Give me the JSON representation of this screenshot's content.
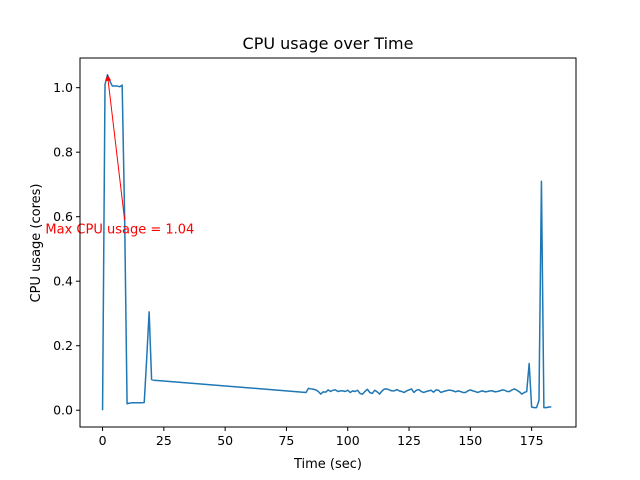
{
  "chart_data": {
    "type": "line",
    "title": "CPU usage over Time",
    "xlabel": "Time (sec)",
    "ylabel": "CPU usage (cores)",
    "xlim": [
      -9.2,
      193.1
    ],
    "ylim": [
      -0.052,
      1.092
    ],
    "xticks": [
      0,
      25,
      50,
      75,
      100,
      125,
      150,
      175
    ],
    "yticks": [
      0.0,
      0.2,
      0.4,
      0.6,
      0.8,
      1.0
    ],
    "xtick_labels": [
      "0",
      "25",
      "50",
      "75",
      "100",
      "125",
      "150",
      "175"
    ],
    "ytick_labels": [
      "0.0",
      "0.2",
      "0.4",
      "0.6",
      "0.8",
      "1.0"
    ],
    "grid": false,
    "series": [
      {
        "color": "#1f77b4",
        "x": [
          0,
          1,
          2,
          3,
          4,
          5,
          6,
          7,
          8,
          9,
          10,
          11,
          12,
          13,
          14,
          15,
          16,
          17,
          18,
          19,
          20,
          21,
          83,
          84,
          85,
          86,
          87,
          88,
          89,
          90,
          91,
          92,
          93,
          94,
          95,
          96,
          97,
          98,
          99,
          100,
          101,
          102,
          103,
          104,
          105,
          106,
          107,
          108,
          109,
          110,
          111,
          112,
          113,
          114,
          115,
          116,
          117,
          118,
          119,
          120,
          121,
          122,
          123,
          124,
          125,
          126,
          127,
          128,
          129,
          130,
          131,
          132,
          133,
          134,
          135,
          136,
          137,
          138,
          139,
          140,
          141,
          142,
          143,
          144,
          145,
          146,
          147,
          148,
          149,
          150,
          151,
          152,
          153,
          154,
          155,
          156,
          157,
          158,
          159,
          160,
          161,
          162,
          163,
          164,
          165,
          166,
          167,
          168,
          169,
          170,
          171,
          172,
          173,
          174,
          175,
          176,
          177,
          178,
          179,
          180,
          181,
          182,
          183
        ],
        "y": [
          0.0,
          1.01,
          1.04,
          1.02,
          1.005,
          1.005,
          1.005,
          1.003,
          1.008,
          0.6,
          0.02,
          0.022,
          0.023,
          0.023,
          0.023,
          0.023,
          0.023,
          0.024,
          0.16,
          0.305,
          0.095,
          0.093,
          0.055,
          0.068,
          0.066,
          0.065,
          0.063,
          0.058,
          0.05,
          0.057,
          0.056,
          0.063,
          0.058,
          0.062,
          0.063,
          0.058,
          0.06,
          0.06,
          0.058,
          0.062,
          0.055,
          0.06,
          0.058,
          0.062,
          0.052,
          0.05,
          0.058,
          0.065,
          0.055,
          0.052,
          0.062,
          0.057,
          0.05,
          0.06,
          0.066,
          0.066,
          0.063,
          0.06,
          0.06,
          0.064,
          0.06,
          0.058,
          0.055,
          0.06,
          0.063,
          0.066,
          0.055,
          0.062,
          0.064,
          0.058,
          0.055,
          0.058,
          0.06,
          0.062,
          0.056,
          0.063,
          0.062,
          0.055,
          0.058,
          0.06,
          0.062,
          0.062,
          0.06,
          0.057,
          0.06,
          0.058,
          0.055,
          0.055,
          0.06,
          0.063,
          0.06,
          0.058,
          0.055,
          0.058,
          0.06,
          0.057,
          0.058,
          0.06,
          0.06,
          0.057,
          0.058,
          0.06,
          0.063,
          0.062,
          0.058,
          0.058,
          0.063,
          0.066,
          0.062,
          0.057,
          0.05,
          0.055,
          0.058,
          0.145,
          0.01,
          0.008,
          0.008,
          0.03,
          0.71,
          0.008,
          0.008,
          0.01,
          0.01
        ]
      }
    ],
    "annotations": [
      {
        "text": "Max CPU usage = 1.04",
        "color": "#ff0000",
        "point": [
          2,
          1.04
        ],
        "text_at": [
          -23.3,
          0.548
        ],
        "arrow_tail": [
          9,
          0.59
        ]
      }
    ]
  }
}
